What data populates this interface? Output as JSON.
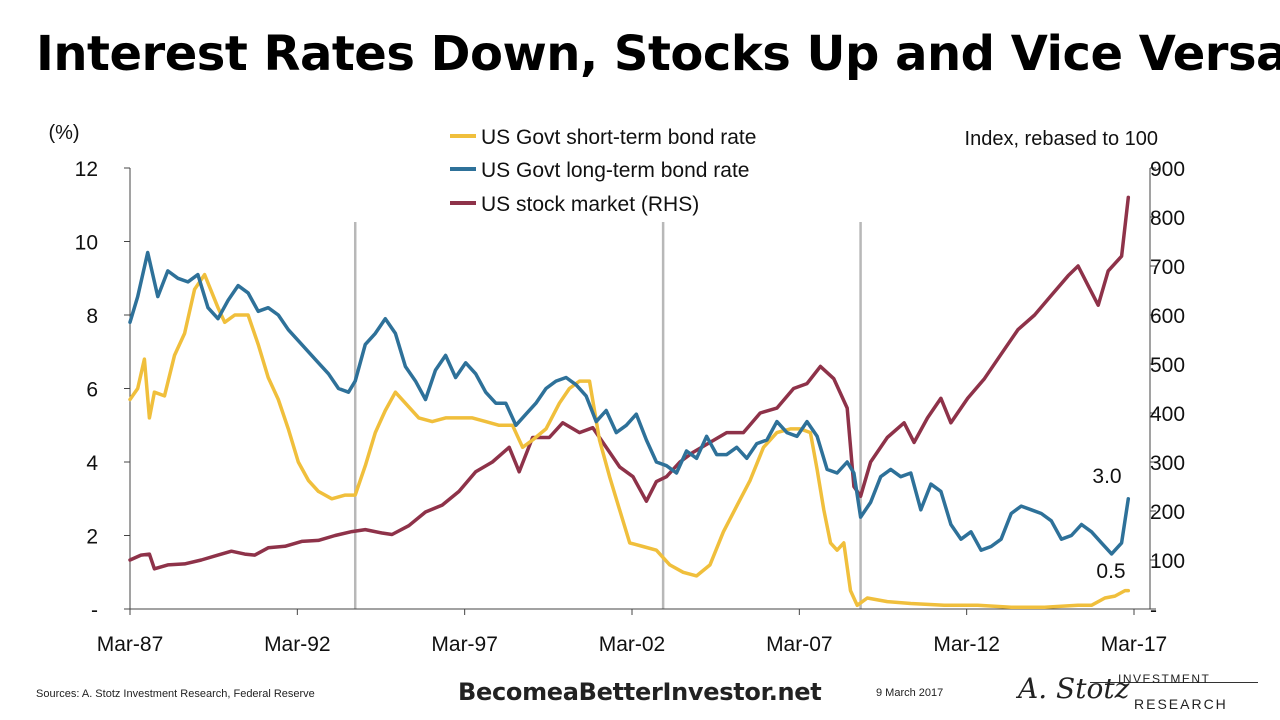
{
  "title": "Interest Rates Down, Stocks Up and Vice Versa",
  "footer": {
    "sources": "Sources: A. Stotz Investment Research, Federal Reserve",
    "site": "BecomeaBetterInvestor.net",
    "date": "9 March 2017",
    "logo_signature": "A. Stotz",
    "logo_line1": "INVESTMENT",
    "logo_line2": "RESEARCH"
  },
  "colors": {
    "short": "#F0BF3C",
    "long": "#2E7199",
    "stock": "#8E3249",
    "divider": "#B8B8B8"
  },
  "chart_data": {
    "type": "line",
    "title": "",
    "y_left_label": "(%)",
    "y_right_label": "Index, rebased to 100",
    "y_left_range": [
      0,
      12
    ],
    "y_right_range": [
      0,
      900
    ],
    "y_left_ticks": [
      "-",
      "2",
      "4",
      "6",
      "8",
      "10",
      "12"
    ],
    "y_right_ticks": [
      "-",
      "100",
      "200",
      "300",
      "400",
      "500",
      "600",
      "700",
      "800",
      "900"
    ],
    "x_ticks": [
      "Mar-87",
      "Mar-92",
      "Mar-97",
      "Mar-02",
      "Mar-07",
      "Mar-12",
      "Mar-17"
    ],
    "x_range": [
      1987.17,
      2017.2
    ],
    "grid": false,
    "legend_position": "top-center",
    "vertical_lines": [
      1993.9,
      2003.1,
      2009.0
    ],
    "annotations": [
      {
        "text": "3.0",
        "series": "US Govt long-term bond rate",
        "x": 2017.0,
        "y": 3.0
      },
      {
        "text": "0.5",
        "series": "US Govt short-term bond rate",
        "x": 2017.0,
        "y": 0.5
      }
    ],
    "series": [
      {
        "name": "US Govt short-term bond rate",
        "axis": "left",
        "x": [
          1987.17,
          1987.4,
          1987.6,
          1987.75,
          1987.9,
          1988.2,
          1988.5,
          1988.8,
          1989.1,
          1989.4,
          1989.8,
          1990.0,
          1990.3,
          1990.7,
          1991.0,
          1991.3,
          1991.6,
          1991.9,
          1992.2,
          1992.5,
          1992.8,
          1993.2,
          1993.6,
          1993.9,
          1994.2,
          1994.5,
          1994.8,
          1995.1,
          1995.4,
          1995.8,
          1996.2,
          1996.6,
          1997.0,
          1997.4,
          1997.8,
          1998.2,
          1998.6,
          1998.9,
          1999.2,
          1999.6,
          2000.0,
          2000.3,
          2000.6,
          2000.9,
          2001.2,
          2001.5,
          2001.8,
          2002.1,
          2002.5,
          2002.9,
          2003.3,
          2003.7,
          2004.1,
          2004.5,
          2004.9,
          2005.3,
          2005.7,
          2006.1,
          2006.5,
          2006.9,
          2007.2,
          2007.5,
          2007.7,
          2007.9,
          2008.1,
          2008.3,
          2008.5,
          2008.7,
          2008.9,
          2009.2,
          2009.8,
          2010.5,
          2011.5,
          2012.5,
          2013.5,
          2014.5,
          2015.5,
          2015.9,
          2016.3,
          2016.6,
          2016.9,
          2017.0
        ],
        "y": [
          5.7,
          6.0,
          6.8,
          5.2,
          5.9,
          5.8,
          6.9,
          7.5,
          8.7,
          9.1,
          8.2,
          7.8,
          8.0,
          8.0,
          7.2,
          6.3,
          5.7,
          4.9,
          4.0,
          3.5,
          3.2,
          3.0,
          3.1,
          3.1,
          3.9,
          4.8,
          5.4,
          5.9,
          5.6,
          5.2,
          5.1,
          5.2,
          5.2,
          5.2,
          5.1,
          5.0,
          5.0,
          4.4,
          4.6,
          4.9,
          5.6,
          6.0,
          6.2,
          6.2,
          4.6,
          3.6,
          2.7,
          1.8,
          1.7,
          1.6,
          1.2,
          1.0,
          0.9,
          1.2,
          2.1,
          2.8,
          3.5,
          4.4,
          4.8,
          4.9,
          4.9,
          4.8,
          3.8,
          2.7,
          1.8,
          1.6,
          1.8,
          0.5,
          0.1,
          0.3,
          0.2,
          0.15,
          0.1,
          0.1,
          0.05,
          0.05,
          0.1,
          0.1,
          0.3,
          0.35,
          0.5,
          0.5
        ]
      },
      {
        "name": "US Govt long-term bond rate",
        "axis": "left",
        "x": [
          1987.17,
          1987.4,
          1987.7,
          1988.0,
          1988.3,
          1988.6,
          1988.9,
          1989.2,
          1989.5,
          1989.8,
          1990.1,
          1990.4,
          1990.7,
          1991.0,
          1991.3,
          1991.6,
          1991.9,
          1992.2,
          1992.5,
          1992.8,
          1993.1,
          1993.4,
          1993.7,
          1993.9,
          1994.2,
          1994.5,
          1994.8,
          1995.1,
          1995.4,
          1995.7,
          1996.0,
          1996.3,
          1996.6,
          1996.9,
          1997.2,
          1997.5,
          1997.8,
          1998.1,
          1998.4,
          1998.7,
          1999.0,
          1999.3,
          1999.6,
          1999.9,
          2000.2,
          2000.5,
          2000.8,
          2001.1,
          2001.4,
          2001.7,
          2002.0,
          2002.3,
          2002.6,
          2002.9,
          2003.2,
          2003.5,
          2003.8,
          2004.1,
          2004.4,
          2004.7,
          2005.0,
          2005.3,
          2005.6,
          2005.9,
          2006.2,
          2006.5,
          2006.8,
          2007.1,
          2007.4,
          2007.7,
          2008.0,
          2008.3,
          2008.6,
          2008.8,
          2009.0,
          2009.3,
          2009.6,
          2009.9,
          2010.2,
          2010.5,
          2010.8,
          2011.1,
          2011.4,
          2011.7,
          2012.0,
          2012.3,
          2012.6,
          2012.9,
          2013.2,
          2013.5,
          2013.8,
          2014.1,
          2014.4,
          2014.7,
          2015.0,
          2015.3,
          2015.6,
          2015.9,
          2016.2,
          2016.5,
          2016.8,
          2017.0
        ],
        "y": [
          7.8,
          8.5,
          9.7,
          8.5,
          9.2,
          9.0,
          8.9,
          9.1,
          8.2,
          7.9,
          8.4,
          8.8,
          8.6,
          8.1,
          8.2,
          8.0,
          7.6,
          7.3,
          7.0,
          6.7,
          6.4,
          6.0,
          5.9,
          6.2,
          7.2,
          7.5,
          7.9,
          7.5,
          6.6,
          6.2,
          5.7,
          6.5,
          6.9,
          6.3,
          6.7,
          6.4,
          5.9,
          5.6,
          5.6,
          5.0,
          5.3,
          5.6,
          6.0,
          6.2,
          6.3,
          6.1,
          5.8,
          5.1,
          5.4,
          4.8,
          5.0,
          5.3,
          4.6,
          4.0,
          3.9,
          3.7,
          4.3,
          4.1,
          4.7,
          4.2,
          4.2,
          4.4,
          4.1,
          4.5,
          4.6,
          5.1,
          4.8,
          4.7,
          5.1,
          4.7,
          3.8,
          3.7,
          4.0,
          3.7,
          2.5,
          2.9,
          3.6,
          3.8,
          3.6,
          3.7,
          2.7,
          3.4,
          3.2,
          2.3,
          1.9,
          2.1,
          1.6,
          1.7,
          1.9,
          2.6,
          2.8,
          2.7,
          2.6,
          2.4,
          1.9,
          2.0,
          2.3,
          2.1,
          1.8,
          1.5,
          1.8,
          3.0
        ]
      },
      {
        "name": "US stock market (RHS)",
        "axis": "right",
        "x": [
          1987.17,
          1987.5,
          1987.75,
          1987.9,
          1988.3,
          1988.8,
          1989.3,
          1989.8,
          1990.2,
          1990.6,
          1990.9,
          1991.3,
          1991.8,
          1992.3,
          1992.8,
          1993.3,
          1993.8,
          1994.2,
          1994.7,
          1995.0,
          1995.5,
          1996.0,
          1996.5,
          1997.0,
          1997.5,
          1998.0,
          1998.5,
          1998.8,
          1999.2,
          1999.7,
          2000.1,
          2000.6,
          2001.0,
          2001.4,
          2001.8,
          2002.2,
          2002.6,
          2002.9,
          2003.2,
          2003.6,
          2004.0,
          2004.5,
          2005.0,
          2005.5,
          2006.0,
          2006.5,
          2007.0,
          2007.4,
          2007.8,
          2008.2,
          2008.6,
          2008.8,
          2009.0,
          2009.3,
          2009.8,
          2010.3,
          2010.6,
          2011.0,
          2011.4,
          2011.7,
          2012.2,
          2012.7,
          2013.2,
          2013.7,
          2014.2,
          2014.7,
          2015.2,
          2015.5,
          2015.8,
          2016.1,
          2016.4,
          2016.8,
          2017.0
        ],
        "y": [
          100,
          110,
          112,
          82,
          90,
          92,
          100,
          110,
          118,
          112,
          110,
          125,
          128,
          138,
          140,
          150,
          158,
          162,
          155,
          152,
          170,
          198,
          212,
          240,
          280,
          300,
          330,
          280,
          350,
          350,
          380,
          360,
          370,
          330,
          290,
          270,
          220,
          260,
          270,
          300,
          320,
          340,
          360,
          360,
          400,
          410,
          450,
          460,
          495,
          470,
          410,
          250,
          230,
          300,
          350,
          380,
          340,
          390,
          430,
          380,
          430,
          470,
          520,
          570,
          600,
          640,
          680,
          700,
          660,
          620,
          690,
          720,
          840
        ]
      }
    ]
  }
}
